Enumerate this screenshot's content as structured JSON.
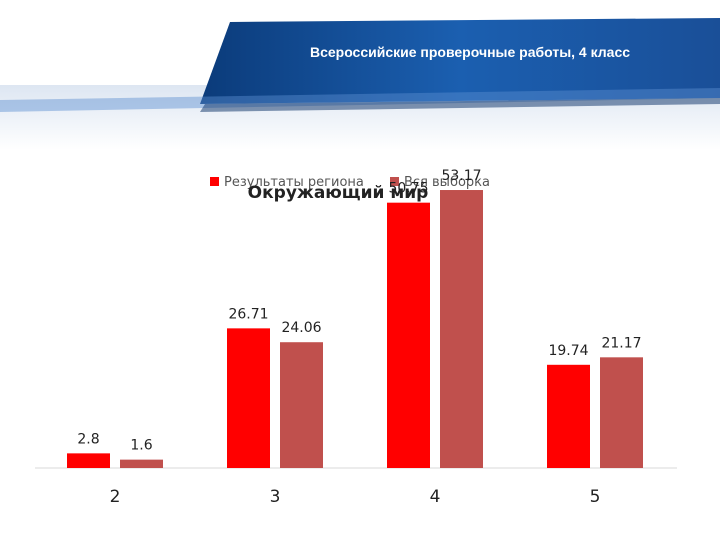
{
  "banner": {
    "title": "Всероссийские проверочные работы, 4 класс"
  },
  "chart_data": {
    "type": "bar",
    "title": "Окружающий мир",
    "xlabel": "",
    "ylabel": "",
    "categories": [
      "2",
      "3",
      "4",
      "5"
    ],
    "series": [
      {
        "name": "Результаты региона",
        "color": "#ff0000",
        "values": [
          2.8,
          26.71,
          50.75,
          19.74
        ]
      },
      {
        "name": "Вся выборка",
        "color": "#c0504d",
        "values": [
          1.6,
          24.06,
          53.17,
          21.17
        ]
      }
    ],
    "ylim": [
      0,
      57
    ],
    "grid": false,
    "legend_position": "top"
  }
}
